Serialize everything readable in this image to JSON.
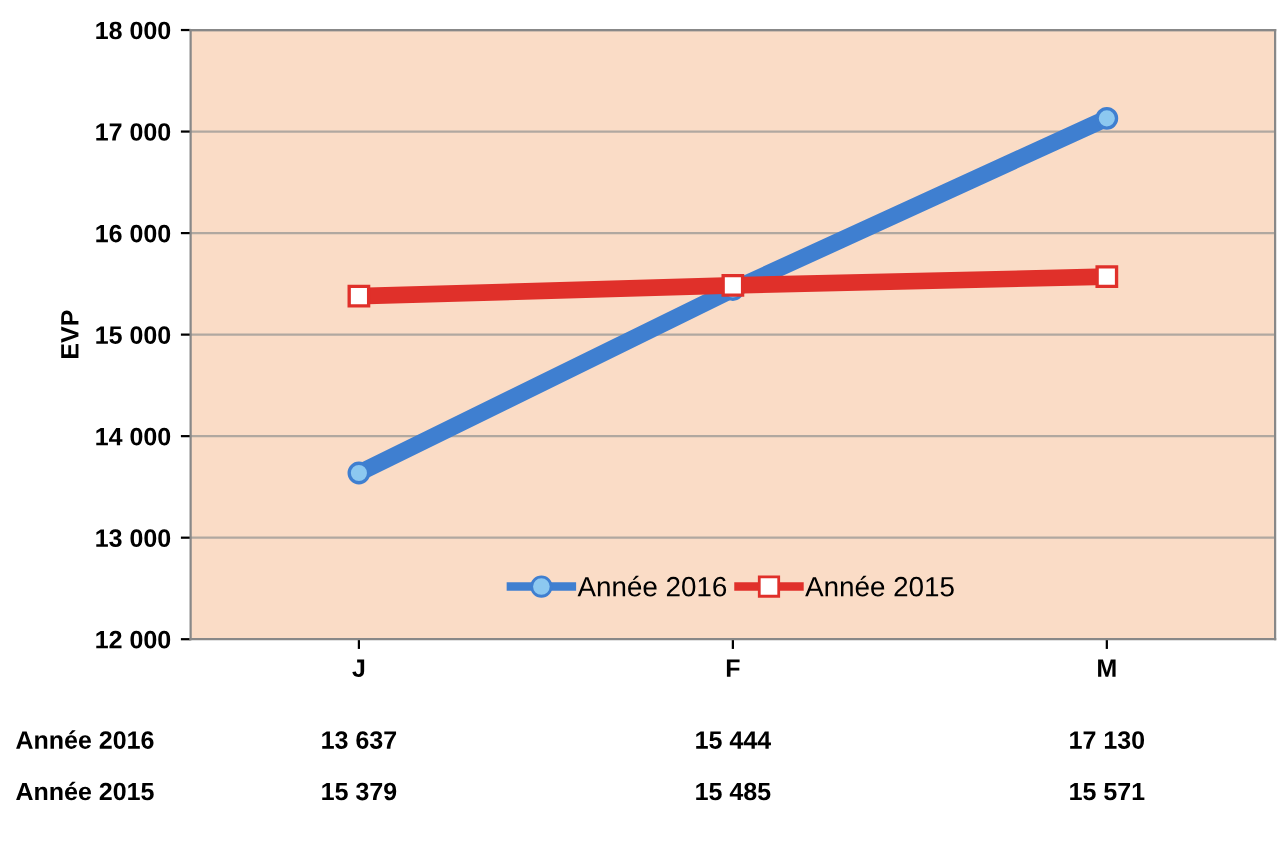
{
  "chart_data": {
    "type": "line",
    "ylabel": "EVP",
    "categories": [
      "J",
      "F",
      "M"
    ],
    "series": [
      {
        "name": "Année 2016",
        "color": "#3f7fd0",
        "values": [
          13637,
          15444,
          17130
        ],
        "value_labels": [
          "13 637",
          "15 444",
          "17 130"
        ],
        "marker": "circle"
      },
      {
        "name": "Année 2015",
        "color": "#e0302a",
        "values": [
          15379,
          15485,
          15571
        ],
        "value_labels": [
          "15 379",
          "15 485",
          "15 571"
        ],
        "marker": "square"
      }
    ],
    "ylim": [
      12000,
      18000
    ],
    "yticks": [
      {
        "value": 12000,
        "label": "12 000"
      },
      {
        "value": 13000,
        "label": "13 000"
      },
      {
        "value": 14000,
        "label": "14 000"
      },
      {
        "value": 15000,
        "label": "15 000"
      },
      {
        "value": 16000,
        "label": "16 000"
      },
      {
        "value": 17000,
        "label": "17 000"
      },
      {
        "value": 18000,
        "label": "18 000"
      }
    ],
    "grid": "y",
    "legend": "bottom",
    "line_style": "solid"
  }
}
